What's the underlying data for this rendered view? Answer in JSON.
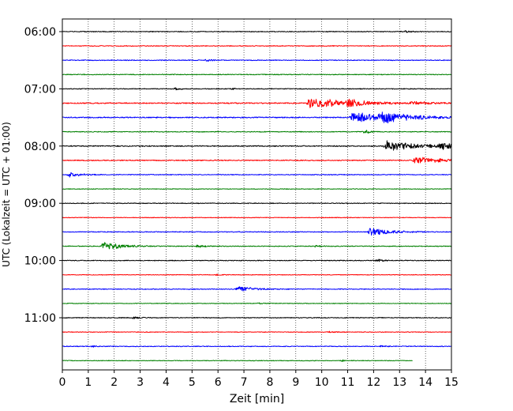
{
  "chart_data": {
    "type": "line",
    "title": "",
    "xlabel": "Zeit  [min]",
    "ylabel": "UTC (Lokalzeit = UTC + 01:00)",
    "xlim": [
      0,
      15
    ],
    "x_ticks": [
      "0",
      "1",
      "2",
      "3",
      "4",
      "5",
      "6",
      "7",
      "8",
      "9",
      "10",
      "11",
      "12",
      "13",
      "14",
      "15"
    ],
    "y_ticks": [
      "06:00",
      "07:00",
      "08:00",
      "09:00",
      "10:00",
      "11:00"
    ],
    "grid": "vertical dotted",
    "legend": "none",
    "trace_interval_min": 15,
    "first_trace": "06:00",
    "last_trace_end_min": 13.5,
    "color_cycle": [
      "#000000",
      "#ff0000",
      "#0000ff",
      "#008000"
    ],
    "traces": [
      {
        "start": "06:00",
        "noise": 1.0,
        "events": [
          {
            "t": 13.3,
            "amp": 3,
            "dur": 0.4
          }
        ]
      },
      {
        "start": "06:15",
        "noise": 1.0,
        "events": []
      },
      {
        "start": "06:30",
        "noise": 1.0,
        "events": [
          {
            "t": 5.6,
            "amp": 3,
            "dur": 0.4
          }
        ]
      },
      {
        "start": "06:45",
        "noise": 1.0,
        "events": []
      },
      {
        "start": "07:00",
        "noise": 1.0,
        "events": [
          {
            "t": 4.4,
            "amp": 3,
            "dur": 0.3
          },
          {
            "t": 6.6,
            "amp": 2,
            "dur": 0.2
          }
        ]
      },
      {
        "start": "07:15",
        "noise": 1.4,
        "events": [
          {
            "t": 9.5,
            "amp": 14,
            "dur": 2.8
          },
          {
            "t": 11.0,
            "amp": 6,
            "dur": 1.8
          },
          {
            "t": 13.5,
            "amp": 4,
            "dur": 1.5
          }
        ]
      },
      {
        "start": "07:30",
        "noise": 1.4,
        "events": [
          {
            "t": 11.2,
            "amp": 14,
            "dur": 2.8
          },
          {
            "t": 12.3,
            "amp": 12,
            "dur": 2.0
          }
        ]
      },
      {
        "start": "07:45",
        "noise": 1.0,
        "events": [
          {
            "t": 11.7,
            "amp": 5,
            "dur": 0.4
          }
        ]
      },
      {
        "start": "08:00",
        "noise": 1.3,
        "events": [
          {
            "t": 12.5,
            "amp": 12,
            "dur": 3.0
          },
          {
            "t": 14.6,
            "amp": 8,
            "dur": 1.0
          }
        ]
      },
      {
        "start": "08:15",
        "noise": 1.2,
        "events": [
          {
            "t": 13.6,
            "amp": 9,
            "dur": 2.2
          }
        ]
      },
      {
        "start": "08:30",
        "noise": 1.0,
        "events": [
          {
            "t": 0.3,
            "amp": 7,
            "dur": 0.8
          }
        ]
      },
      {
        "start": "08:45",
        "noise": 0.8,
        "events": []
      },
      {
        "start": "09:00",
        "noise": 1.0,
        "events": []
      },
      {
        "start": "09:15",
        "noise": 0.8,
        "events": []
      },
      {
        "start": "09:30",
        "noise": 1.0,
        "events": [
          {
            "t": 11.9,
            "amp": 13,
            "dur": 1.4
          }
        ]
      },
      {
        "start": "09:45",
        "noise": 1.0,
        "events": [
          {
            "t": 1.6,
            "amp": 11,
            "dur": 1.4
          },
          {
            "t": 5.2,
            "amp": 5,
            "dur": 0.6
          },
          {
            "t": 9.8,
            "amp": 2,
            "dur": 0.5
          }
        ]
      },
      {
        "start": "10:00",
        "noise": 1.0,
        "events": [
          {
            "t": 12.2,
            "amp": 4,
            "dur": 0.5
          }
        ]
      },
      {
        "start": "10:15",
        "noise": 0.8,
        "events": [
          {
            "t": 6.0,
            "amp": 2,
            "dur": 0.3
          }
        ]
      },
      {
        "start": "10:30",
        "noise": 1.0,
        "events": [
          {
            "t": 6.8,
            "amp": 7,
            "dur": 1.2
          }
        ]
      },
      {
        "start": "10:45",
        "noise": 0.8,
        "events": [
          {
            "t": 7.6,
            "amp": 2,
            "dur": 0.4
          }
        ]
      },
      {
        "start": "11:00",
        "noise": 1.0,
        "events": [
          {
            "t": 2.8,
            "amp": 3,
            "dur": 0.4
          }
        ]
      },
      {
        "start": "11:15",
        "noise": 0.8,
        "events": [
          {
            "t": 10.3,
            "amp": 2,
            "dur": 0.6
          }
        ]
      },
      {
        "start": "11:30",
        "noise": 1.0,
        "events": [
          {
            "t": 1.2,
            "amp": 2,
            "dur": 0.3
          },
          {
            "t": 12.3,
            "amp": 2,
            "dur": 0.4
          }
        ]
      },
      {
        "start": "11:45",
        "noise": 0.8,
        "events": [
          {
            "t": 10.8,
            "amp": 2,
            "dur": 0.4
          }
        ]
      }
    ]
  }
}
